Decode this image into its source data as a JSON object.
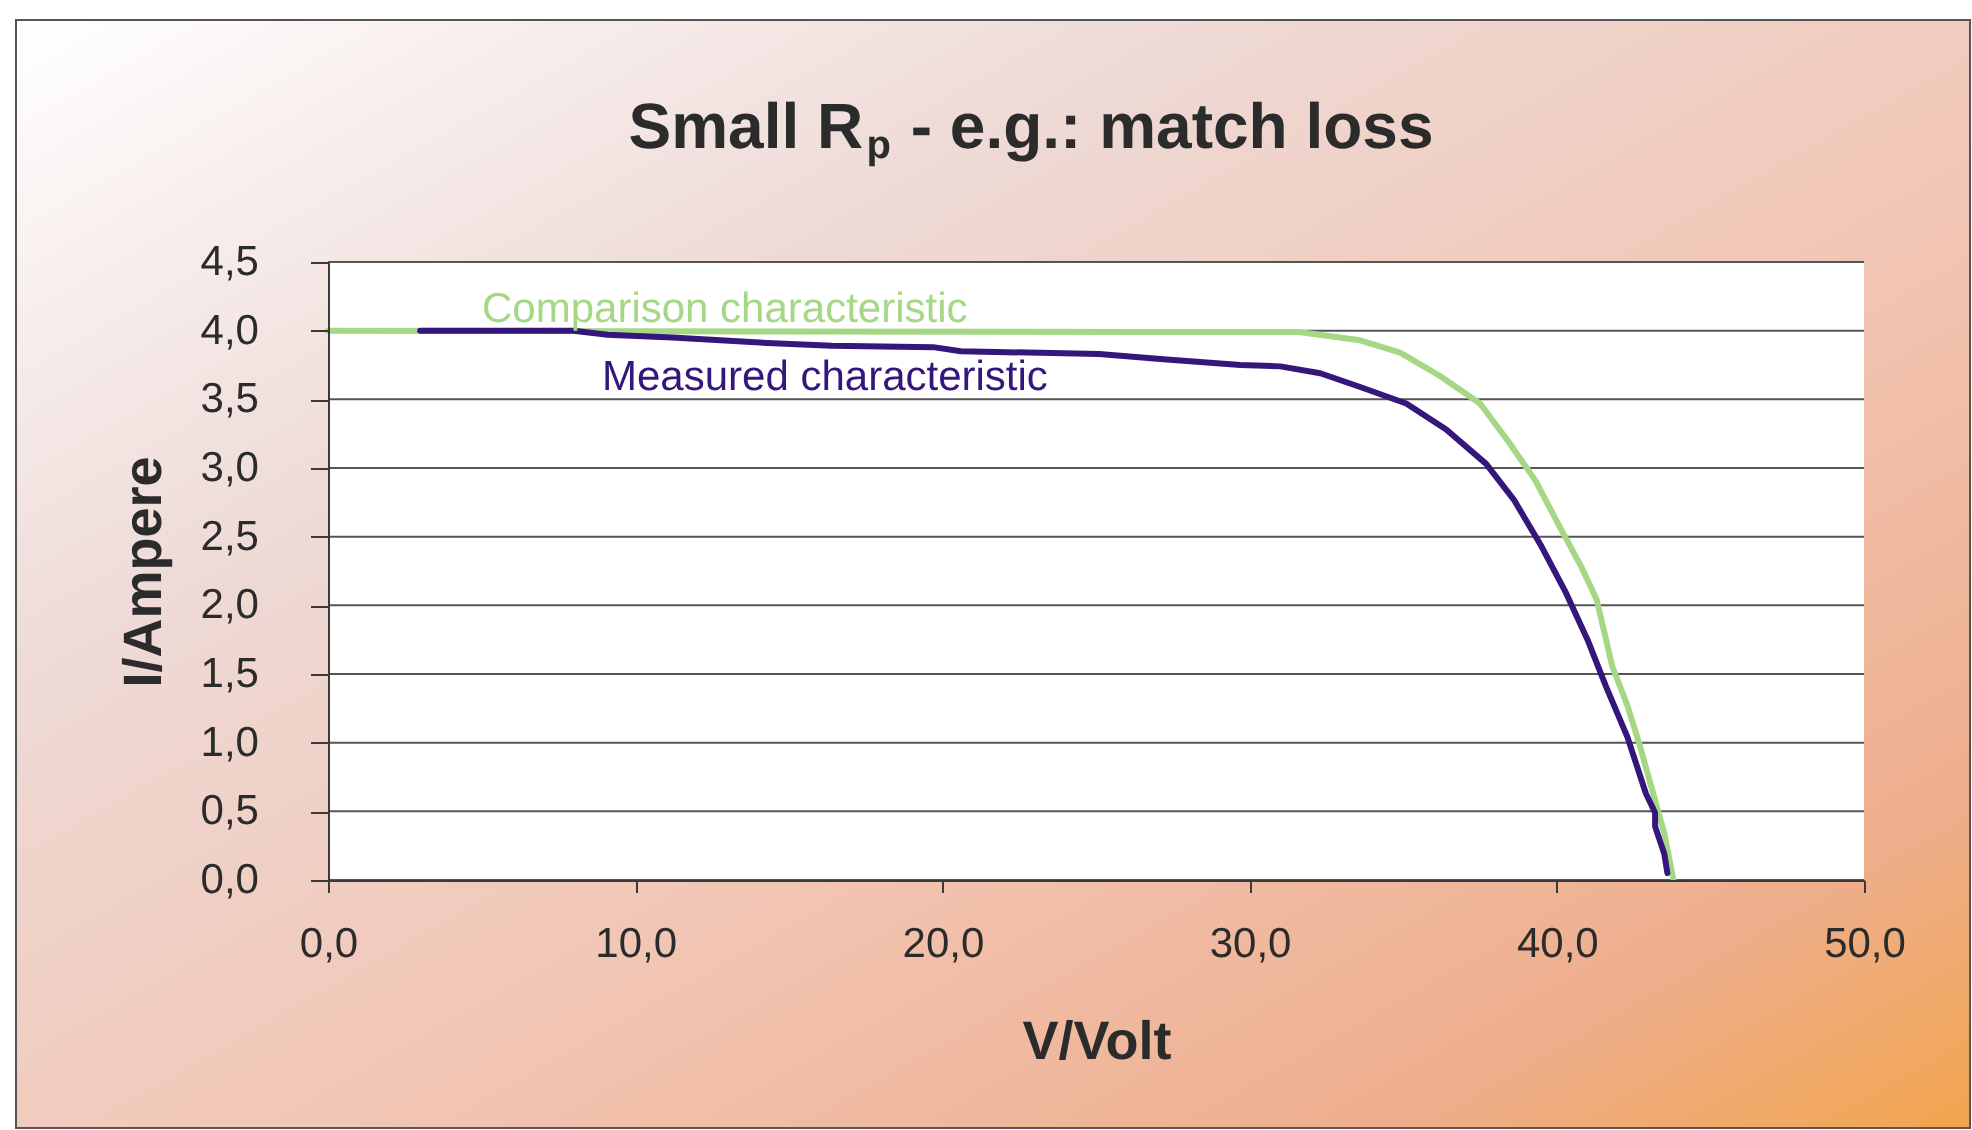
{
  "chart_data": {
    "type": "line",
    "title": "Small R$_{p}$ - e.g.: match loss",
    "xlabel": "V/Volt",
    "ylabel": "I/Ampere",
    "xlim": [
      0,
      50
    ],
    "xticks": [
      {
        "value": 0,
        "label": "0,0"
      },
      {
        "value": 10,
        "label": "10,0"
      },
      {
        "value": 20,
        "label": "20,0"
      },
      {
        "value": 30,
        "label": "30,0"
      },
      {
        "value": 40,
        "label": "40,0"
      },
      {
        "value": 50,
        "label": "50,0"
      }
    ],
    "ylim": [
      0,
      4.5
    ],
    "yticks": [
      {
        "value": 0,
        "label": "0,0"
      },
      {
        "value": 0.5,
        "label": "0,5"
      },
      {
        "value": 1,
        "label": "1,0"
      },
      {
        "value": 1.5,
        "label": "1,5"
      },
      {
        "value": 2,
        "label": "2,0"
      },
      {
        "value": 2.5,
        "label": "2,5"
      },
      {
        "value": 3,
        "label": "3,0"
      },
      {
        "value": 3.5,
        "label": "3,5"
      },
      {
        "value": 4,
        "label": "4,0"
      },
      {
        "value": 4.5,
        "label": "4,5"
      }
    ],
    "grid": "y",
    "series": [
      {
        "name": "Comparison characteristic",
        "color": "#a6d784",
        "x": [
          0,
          26.6,
          31.6,
          33.6,
          34.9,
          36.2,
          37.5,
          38.4,
          39.3,
          40.1,
          40.8,
          41.3,
          41.8,
          42.3,
          42.7,
          43.2,
          43.5,
          43.8
        ],
        "values": [
          4.0,
          3.99,
          3.99,
          3.93,
          3.84,
          3.67,
          3.47,
          3.2,
          2.91,
          2.57,
          2.28,
          2.04,
          1.56,
          1.27,
          0.98,
          0.58,
          0.34,
          0.0
        ]
      },
      {
        "name": "Measured characteristic",
        "color": "#35167a",
        "x": [
          3.0,
          8.0,
          9.1,
          11.2,
          14.3,
          16.4,
          19.7,
          20.6,
          25.1,
          27.3,
          29.7,
          31.0,
          32.3,
          33.6,
          35.1,
          36.4,
          37.7,
          38.6,
          39.5,
          40.3,
          41.0,
          41.6,
          42.3,
          42.9,
          43.2,
          43.2,
          43.5,
          43.6
        ],
        "values": [
          4.0,
          4.0,
          3.97,
          3.95,
          3.91,
          3.89,
          3.88,
          3.85,
          3.83,
          3.79,
          3.75,
          3.74,
          3.69,
          3.59,
          3.47,
          3.28,
          3.03,
          2.77,
          2.43,
          2.09,
          1.75,
          1.41,
          1.04,
          0.63,
          0.49,
          0.39,
          0.19,
          0.05
        ]
      }
    ]
  }
}
